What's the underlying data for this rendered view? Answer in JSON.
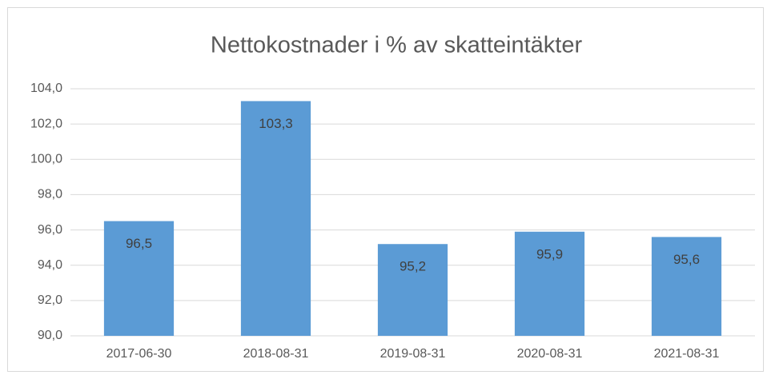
{
  "chart_data": {
    "type": "bar",
    "title": "Nettokostnader i % av skatteintäkter",
    "categories": [
      "2017-06-30",
      "2018-08-31",
      "2019-08-31",
      "2020-08-31",
      "2021-08-31"
    ],
    "values": [
      96.5,
      103.3,
      95.2,
      95.9,
      95.6
    ],
    "value_labels": [
      "96,5",
      "103,3",
      "95,2",
      "95,9",
      "95,6"
    ],
    "color": "#5b9bd5",
    "ylim": [
      90,
      104
    ],
    "yticks": [
      {
        "value": 90,
        "label": "90,0"
      },
      {
        "value": 92,
        "label": "92,0"
      },
      {
        "value": 94,
        "label": "94,0"
      },
      {
        "value": 96,
        "label": "96,0"
      },
      {
        "value": 98,
        "label": "98,0"
      },
      {
        "value": 100,
        "label": "100,0"
      },
      {
        "value": 102,
        "label": "102,0"
      },
      {
        "value": 104,
        "label": "104,0"
      }
    ],
    "grid": true
  }
}
